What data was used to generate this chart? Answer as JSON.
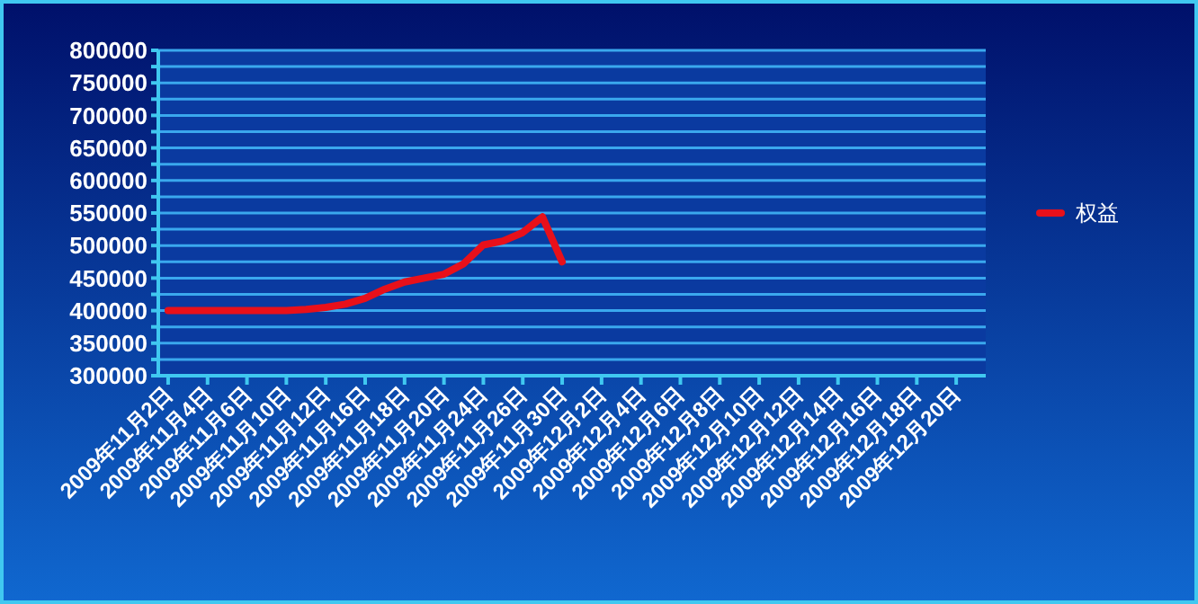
{
  "chart_data": {
    "type": "line",
    "categories": [
      "2009年11月2日",
      null,
      "2009年11月4日",
      null,
      "2009年11月6日",
      null,
      "2009年11月10日",
      null,
      "2009年11月12日",
      null,
      "2009年11月16日",
      null,
      "2009年11月18日",
      null,
      "2009年11月20日",
      null,
      "2009年11月24日",
      null,
      "2009年11月26日",
      null,
      "2009年11月30日",
      null,
      "2009年12月2日",
      null,
      "2009年12月4日",
      null,
      "2009年12月6日",
      null,
      "2009年12月8日",
      null,
      "2009年12月10日",
      null,
      "2009年12月12日",
      null,
      "2009年12月14日",
      null,
      "2009年12月16日",
      null,
      "2009年12月18日",
      null,
      "2009年12月20日",
      null
    ],
    "series": [
      {
        "name": "权益",
        "color": "#e8101a",
        "values": [
          400000,
          400000,
          400000,
          400000,
          400000,
          400000,
          400000,
          402000,
          405000,
          410000,
          419000,
          433000,
          444000,
          450000,
          456000,
          472000,
          501000,
          507000,
          520000,
          544000,
          475000,
          null,
          null,
          null,
          null,
          null,
          null,
          null,
          null,
          null,
          null,
          null,
          null,
          null,
          null,
          null,
          null,
          null,
          null,
          null,
          null,
          null
        ]
      }
    ],
    "ylim": [
      300000,
      800000
    ],
    "yticks": [
      300000,
      {
        "value": 325000,
        "label": null
      },
      350000,
      {
        "value": 375000,
        "label": null
      },
      400000,
      {
        "value": 425000,
        "label": null
      },
      450000,
      {
        "value": 475000,
        "label": null
      },
      500000,
      {
        "value": 525000,
        "label": null
      },
      550000,
      {
        "value": 575000,
        "label": null
      },
      600000,
      {
        "value": 625000,
        "label": null
      },
      650000,
      {
        "value": 675000,
        "label": null
      },
      700000,
      {
        "value": 725000,
        "label": null
      },
      750000,
      {
        "value": 775000,
        "label": null
      },
      800000
    ],
    "grid": "y",
    "legend": "right",
    "marker": "none",
    "line_style": "solid"
  }
}
